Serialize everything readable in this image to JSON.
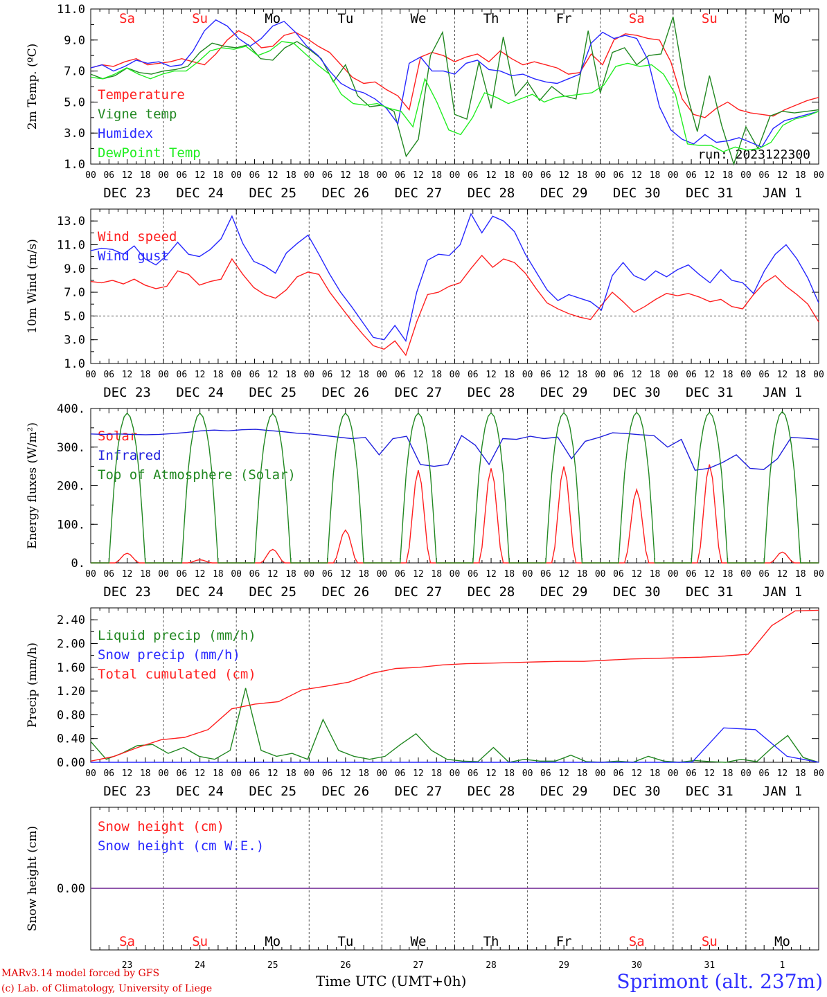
{
  "chart_data": [
    {
      "type": "line",
      "ylabel": "2m Temp. (ºC)",
      "yticks": [
        "1.0",
        "3.0",
        "5.0",
        "7.0",
        "9.0",
        "11.0"
      ],
      "ylim": [
        1,
        11
      ],
      "annotation": "run: 2023122300",
      "day_names": [
        "Sa",
        "Su",
        "Mo",
        "Tu",
        "We",
        "Th",
        "Fr",
        "Sa",
        "Su",
        "Mo"
      ],
      "series": [
        {
          "name": "Temperature",
          "color": "#ff2020",
          "values": [
            7.2,
            7.4,
            7.3,
            7.6,
            7.8,
            7.4,
            7.5,
            7.6,
            7.8,
            7.6,
            7.4,
            8.1,
            9.0,
            9.6,
            9.2,
            8.5,
            8.6,
            9.3,
            9.5,
            9.1,
            8.6,
            8.2,
            7.4,
            6.6,
            6.2,
            6.3,
            5.8,
            5.4,
            4.5,
            7.9,
            8.2,
            8.0,
            7.6,
            7.9,
            8.1,
            7.6,
            8.3,
            7.8,
            7.4,
            7.6,
            7.4,
            7.2,
            6.8,
            6.9,
            8.1,
            7.4,
            9.0,
            9.4,
            9.3,
            9.1,
            9.0,
            7.6,
            5.2,
            4.2,
            4.0,
            4.6,
            5.0,
            4.5,
            4.3,
            4.2,
            4.1,
            4.5,
            4.8,
            5.1,
            5.3
          ]
        },
        {
          "name": "Vigne temp",
          "color": "#228822",
          "values": [
            6.8,
            6.5,
            6.7,
            7.2,
            6.9,
            6.8,
            7.0,
            7.1,
            7.3,
            8.2,
            8.8,
            8.6,
            8.5,
            8.7,
            7.8,
            7.7,
            8.5,
            8.9,
            8.4,
            7.8,
            6.3,
            7.4,
            5.4,
            4.7,
            4.8,
            4.4,
            1.5,
            2.6,
            8.0,
            9.5,
            4.2,
            3.9,
            7.6,
            4.6,
            9.2,
            5.4,
            6.3,
            5.1,
            6.0,
            5.4,
            5.2,
            9.6,
            5.6,
            8.2,
            8.5,
            7.4,
            8.0,
            8.1,
            10.5,
            5.9,
            3.1,
            6.7,
            3.5,
            1.0,
            3.4,
            2.0,
            4.1,
            4.4,
            4.3,
            4.4,
            4.5
          ]
        },
        {
          "name": "Humidex",
          "color": "#2828ff",
          "values": [
            7.2,
            7.4,
            7.0,
            7.3,
            7.7,
            7.5,
            7.6,
            7.3,
            7.4,
            8.3,
            9.6,
            10.3,
            9.9,
            9.1,
            8.6,
            9.1,
            9.9,
            10.2,
            9.5,
            8.6,
            8.0,
            7.0,
            6.2,
            5.8,
            5.6,
            5.2,
            4.6,
            3.6,
            7.5,
            7.9,
            7.0,
            7.0,
            6.8,
            7.5,
            7.7,
            7.1,
            7.0,
            6.7,
            6.8,
            6.5,
            6.3,
            6.2,
            6.5,
            6.8,
            8.8,
            9.5,
            9.1,
            9.3,
            9.1,
            7.7,
            4.7,
            3.2,
            2.6,
            2.3,
            2.9,
            2.4,
            2.5,
            2.7,
            2.4,
            2.1,
            3.3,
            3.8,
            4.0,
            4.2,
            4.4
          ]
        },
        {
          "name": "DewPoint Temp",
          "color": "#22ee22",
          "values": [
            6.6,
            6.5,
            6.8,
            7.2,
            6.8,
            6.5,
            6.8,
            7.0,
            7.0,
            7.6,
            8.3,
            8.5,
            8.4,
            8.6,
            8.0,
            8.3,
            8.9,
            8.8,
            8.1,
            7.4,
            6.8,
            5.5,
            4.9,
            4.8,
            4.9,
            4.6,
            4.4,
            3.4,
            6.5,
            5.0,
            3.2,
            2.9,
            4.0,
            5.6,
            5.3,
            4.9,
            5.2,
            5.5,
            5.0,
            5.3,
            5.4,
            5.5,
            5.6,
            6.1,
            7.3,
            7.5,
            7.3,
            7.4,
            6.8,
            5.5,
            2.3,
            2.2,
            2.2,
            1.8,
            2.1,
            1.9,
            2.0,
            2.4,
            3.5,
            3.9,
            4.1,
            4.4
          ]
        }
      ]
    },
    {
      "type": "line",
      "ylabel": "10m Wind (m/s)",
      "yticks": [
        "1.0",
        "3.0",
        "5.0",
        "7.0",
        "9.0",
        "11.0",
        "13.0"
      ],
      "ylim": [
        1,
        14
      ],
      "reference_line": 5,
      "series": [
        {
          "name": "Wind speed",
          "color": "#ff2020",
          "values": [
            7.9,
            7.8,
            8.0,
            7.7,
            8.1,
            7.6,
            7.3,
            7.5,
            8.8,
            8.5,
            7.6,
            7.9,
            8.1,
            9.8,
            8.5,
            7.4,
            6.8,
            6.5,
            7.2,
            8.3,
            8.7,
            8.5,
            7.0,
            5.8,
            4.6,
            3.5,
            2.5,
            2.2,
            2.9,
            1.7,
            4.5,
            6.8,
            7.0,
            7.5,
            7.8,
            9.0,
            10.1,
            9.1,
            9.8,
            9.5,
            8.6,
            7.3,
            6.1,
            5.6,
            5.2,
            4.9,
            4.7,
            5.9,
            7.0,
            6.2,
            5.3,
            5.8,
            6.4,
            6.9,
            6.7,
            6.9,
            6.6,
            6.2,
            6.4,
            5.8,
            5.6,
            6.8,
            7.8,
            8.4,
            7.5,
            6.8,
            6.0,
            4.5
          ]
        },
        {
          "name": "Wind gust",
          "color": "#2828ff",
          "values": [
            10.5,
            10.7,
            10.6,
            10.2,
            10.9,
            9.8,
            9.3,
            10.1,
            11.2,
            10.2,
            10.0,
            10.6,
            11.5,
            13.4,
            11.1,
            9.6,
            9.2,
            8.6,
            10.3,
            11.1,
            11.8,
            10.2,
            8.5,
            7.0,
            5.8,
            4.5,
            3.2,
            3.0,
            4.2,
            2.9,
            7.0,
            9.7,
            10.2,
            10.1,
            11.0,
            13.6,
            12.0,
            13.4,
            13.0,
            12.1,
            10.2,
            8.7,
            7.2,
            6.3,
            6.8,
            6.5,
            6.2,
            5.5,
            8.4,
            9.5,
            8.4,
            8.0,
            8.8,
            8.3,
            8.9,
            9.3,
            8.5,
            7.8,
            8.9,
            8.0,
            7.8,
            6.9,
            8.8,
            10.2,
            11.0,
            9.8,
            8.2,
            6.1
          ]
        }
      ]
    },
    {
      "type": "line",
      "ylabel": "Energy fluxes (W/m²)",
      "yticks": [
        "0.",
        "100.",
        "200.",
        "300.",
        "400."
      ],
      "ylim": [
        0,
        400
      ],
      "series": [
        {
          "name": "Solar",
          "color": "#ff2020",
          "peaks": [
            25,
            8,
            35,
            85,
            240,
            245,
            250,
            190,
            255,
            28
          ]
        },
        {
          "name": "Infrared",
          "color": "#2020dd",
          "values": [
            334,
            333,
            334,
            333,
            332,
            333,
            335,
            338,
            342,
            344,
            342,
            345,
            346,
            343,
            340,
            336,
            334,
            330,
            326,
            322,
            325,
            280,
            322,
            328,
            255,
            250,
            255,
            330,
            305,
            255,
            322,
            320,
            328,
            322,
            326,
            270,
            315,
            325,
            337,
            335,
            332,
            330,
            300,
            320,
            240,
            245,
            260,
            280,
            245,
            242,
            270,
            325,
            323,
            320
          ]
        },
        {
          "name": "Top of Atmosphere (Solar)",
          "color": "#228822",
          "peaks": [
            388,
            388,
            387,
            388,
            388,
            389,
            389,
            390,
            390,
            392
          ]
        }
      ]
    },
    {
      "type": "line",
      "ylabel": "Precip (mm/h)",
      "yticks": [
        "0.00",
        "0.40",
        "0.80",
        "1.20",
        "1.60",
        "2.00",
        "2.40"
      ],
      "ylim": [
        0,
        2.6
      ],
      "series": [
        {
          "name": "Liquid precip (mm/h)",
          "color": "#228822",
          "values": [
            0.35,
            0.05,
            0.15,
            0.28,
            0.3,
            0.15,
            0.25,
            0.1,
            0.05,
            0.2,
            1.25,
            0.2,
            0.1,
            0.15,
            0.05,
            0.72,
            0.2,
            0.1,
            0.05,
            0.1,
            0.3,
            0.48,
            0.2,
            0.05,
            0.02,
            0.01,
            0.25,
            0.0,
            0.05,
            0.02,
            0.02,
            0.12,
            0.01,
            0.0,
            0.02,
            0.0,
            0.1,
            0.02,
            0.0,
            0.03,
            0.01,
            0.0,
            0.05,
            0.01,
            0.25,
            0.45,
            0.08,
            0.0
          ]
        },
        {
          "name": "Snow precip (mm/h)",
          "color": "#2828ff",
          "values": [
            0.0,
            0.0,
            0.0,
            0.0,
            0.0,
            0.0,
            0.0,
            0.0,
            0.0,
            0.0,
            0.0,
            0.0,
            0.0,
            0.0,
            0.0,
            0.0,
            0.0,
            0.0,
            0.0,
            0.0,
            0.58,
            0.55,
            0.1,
            0.0
          ]
        },
        {
          "name": "Total cumulated (cm)",
          "color": "#ff2020",
          "values": [
            0.02,
            0.1,
            0.25,
            0.38,
            0.42,
            0.55,
            0.9,
            0.98,
            1.02,
            1.22,
            1.28,
            1.35,
            1.5,
            1.58,
            1.6,
            1.64,
            1.66,
            1.67,
            1.68,
            1.69,
            1.7,
            1.7,
            1.72,
            1.74,
            1.75,
            1.76,
            1.77,
            1.79,
            1.82,
            2.3,
            2.55,
            2.56
          ]
        }
      ]
    },
    {
      "type": "line",
      "ylabel": "Snow height (cm)",
      "yticks": [
        "0.00"
      ],
      "series": [
        {
          "name": "Snow height (cm)",
          "color": "#ff2020",
          "values": [
            0,
            0
          ]
        },
        {
          "name": "Snow height (cm W.E.)",
          "color": "#2828ff",
          "values": [
            0,
            0
          ]
        }
      ]
    }
  ],
  "x_axis": {
    "hour_ticks": [
      "00",
      "06",
      "12",
      "18"
    ],
    "date_labels": [
      "DEC 23",
      "DEC 24",
      "DEC 25",
      "DEC 26",
      "DEC 27",
      "DEC 28",
      "DEC 29",
      "DEC 30",
      "DEC 31",
      "JAN  1"
    ],
    "weekend_days": [
      0,
      1,
      7,
      8
    ],
    "day_numbers": [
      "23",
      "24",
      "25",
      "26",
      "27",
      "28",
      "29",
      "30",
      "31",
      "1"
    ]
  },
  "colors": {
    "weekend": "#ff2020",
    "weekday": "#000000"
  },
  "footer": {
    "model": "MARv3.14 model forced by GFS",
    "copyright": "(c) Lab. of Climatology, University of Liege",
    "time_label": "Time UTC (UMT+0h)",
    "location": "Sprimont (alt. 237m)"
  }
}
